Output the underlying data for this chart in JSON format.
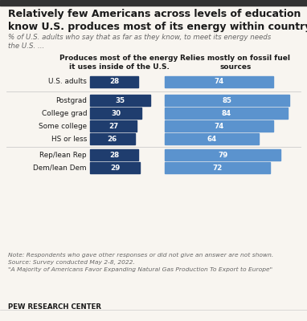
{
  "title": "Relatively few Americans across levels of education\nknow U.S. produces most of its energy within country",
  "subtitle": "% of U.S. adults who say that as far as they know, to meet its energy needs\nthe U.S. ...",
  "col1_header": "Produces most of the energy\nit uses inside of the U.S.",
  "col2_header": "Relies mostly on fossil fuel\nsources",
  "categories": [
    "U.S. adults",
    "Postgrad",
    "College grad",
    "Some college",
    "HS or less",
    "Rep/lean Rep",
    "Dem/lean Dem"
  ],
  "col1_values": [
    28,
    35,
    30,
    27,
    26,
    28,
    29
  ],
  "col2_values": [
    74,
    85,
    84,
    74,
    64,
    79,
    72
  ],
  "col1_color": "#1f3d6e",
  "col2_color": "#5b93ce",
  "text_color": "#1a1a1a",
  "subtitle_color": "#666666",
  "note_color": "#666666",
  "bg_color": "#f8f5f0",
  "divider_color": "#cccccc",
  "top_border_color": "#333333",
  "note_line1": "Note: Respondents who gave other responses or did not give an answer are not shown.",
  "note_line2": "Source: Survey conducted May 2-8, 2022.",
  "note_line3": "\"A Majority of Americans Favor Expanding Natural Gas Production To Export to Europe\"",
  "source_label": "PEW RESEARCH CENTER"
}
